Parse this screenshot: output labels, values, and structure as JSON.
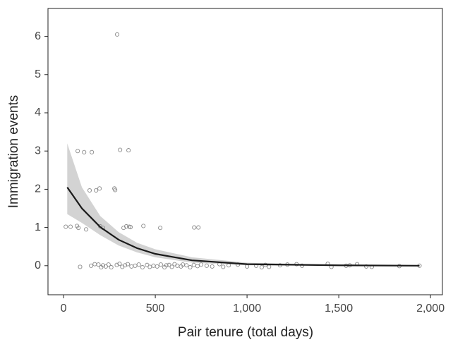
{
  "chart_data": {
    "type": "scatter",
    "x_label": "Pair tenure (total days)",
    "y_label": "Immigration events",
    "xlim": [
      -85,
      2065
    ],
    "ylim": [
      -0.76,
      6.73
    ],
    "xticks": [
      0,
      500,
      {
        "value": 1000,
        "label": "1,000"
      },
      {
        "value": 1500,
        "label": "1,500"
      },
      {
        "value": 2000,
        "label": "2,000"
      }
    ],
    "yticks": [
      0,
      1,
      2,
      3,
      4,
      5,
      6
    ],
    "point_color": "#8a8a8a",
    "line_color": "#1a1a1a",
    "band_color": "#d3d3d3",
    "points": {
      "x": [
        292,
        77,
        112,
        154,
        308,
        354,
        142,
        177,
        196,
        277,
        281,
        12,
        38,
        73,
        81,
        123,
        200,
        215,
        327,
        342,
        358,
        365,
        435,
        527,
        712,
        735,
        90,
        150,
        170,
        190,
        205,
        215,
        230,
        245,
        260,
        290,
        305,
        320,
        335,
        350,
        370,
        390,
        410,
        430,
        455,
        470,
        490,
        510,
        530,
        550,
        560,
        575,
        590,
        605,
        620,
        640,
        650,
        670,
        690,
        710,
        730,
        750,
        780,
        810,
        850,
        870,
        900,
        950,
        1000,
        1050,
        1080,
        1100,
        1120,
        1180,
        1220,
        1270,
        1300,
        1440,
        1460,
        1540,
        1560,
        1600,
        1650,
        1680,
        1830,
        1940
      ],
      "y": [
        6.05,
        3.0,
        2.97,
        2.97,
        3.03,
        3.02,
        1.97,
        1.97,
        2.02,
        2.02,
        1.98,
        1.02,
        1.02,
        1.04,
        0.99,
        0.95,
        1.03,
        0.99,
        0.99,
        1.03,
        1.02,
        1.01,
        1.04,
        0.99,
        1.0,
        1.0,
        -0.03,
        0.0,
        0.04,
        0.03,
        -0.04,
        0.01,
        -0.02,
        0.03,
        -0.04,
        0.02,
        0.05,
        -0.03,
        0.01,
        0.04,
        -0.02,
        0.0,
        0.03,
        -0.04,
        0.02,
        -0.03,
        0.0,
        -0.02,
        0.03,
        -0.04,
        0.01,
        0.02,
        -0.03,
        0.04,
        0.0,
        -0.02,
        0.03,
        0.01,
        -0.04,
        0.02,
        -0.01,
        0.03,
        0.0,
        -0.02,
        0.04,
        -0.03,
        0.01,
        0.03,
        -0.02,
        0.0,
        -0.04,
        0.02,
        -0.03,
        0.01,
        0.03,
        0.04,
        0.0,
        0.05,
        -0.03,
        0.0,
        0.01,
        0.04,
        -0.02,
        -0.03,
        -0.01,
        0.0
      ]
    },
    "fit": {
      "x": [
        20,
        100,
        200,
        300,
        400,
        500,
        700,
        1000,
        1500,
        1940
      ],
      "values": [
        2.05,
        1.5,
        1.01,
        0.68,
        0.46,
        0.31,
        0.14,
        0.04,
        0.01,
        0.0
      ],
      "lower": [
        1.35,
        1.12,
        0.8,
        0.53,
        0.35,
        0.22,
        0.08,
        0.01,
        0.0,
        0.0
      ],
      "upper": [
        3.2,
        2.05,
        1.3,
        0.88,
        0.6,
        0.43,
        0.22,
        0.08,
        0.02,
        0.01
      ]
    }
  }
}
